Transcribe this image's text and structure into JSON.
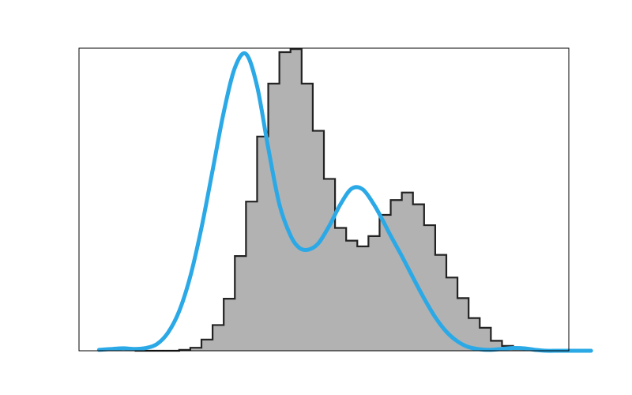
{
  "chart_data": {
    "type": "histogram",
    "title": "",
    "xlabel": "",
    "ylabel": "",
    "axes_ticks_visible": false,
    "grid": false,
    "legend": "none",
    "xlim": [
      0.0,
      44.0
    ],
    "ylim": [
      0,
      100
    ],
    "bins": {
      "edges": [
        5,
        6,
        7,
        8,
        9,
        10,
        11,
        12,
        13,
        14,
        15,
        16,
        17,
        18,
        19,
        20,
        21,
        22,
        23,
        24,
        25,
        26,
        27,
        28,
        29,
        30,
        31,
        32,
        33,
        34,
        35,
        36,
        37,
        38,
        39,
        40,
        41,
        42
      ],
      "counts": [
        0,
        0,
        0,
        0,
        0.3,
        1,
        3.7,
        8.5,
        17.2,
        31.3,
        49.3,
        70.8,
        88.3,
        98.7,
        99.7,
        88.3,
        72.7,
        56.8,
        40.6,
        36.4,
        34.5,
        37.9,
        44.9,
        49.8,
        52.3,
        48.4,
        41.5,
        31.7,
        24.2,
        17.4,
        10.8,
        7.6,
        3.3,
        1.6,
        0.5,
        0.2,
        0
      ]
    },
    "kde": {
      "x": [
        1.8,
        3,
        4,
        5,
        6,
        7,
        8,
        9,
        10,
        11,
        12,
        13,
        14,
        15,
        16,
        17,
        18,
        19,
        19.8,
        20.6,
        21.5,
        22.5,
        23.5,
        24.5,
        25.5,
        26.5,
        27.3,
        28,
        29,
        30,
        31,
        32,
        33,
        34,
        35,
        36,
        37,
        38,
        39,
        40,
        41,
        42,
        43,
        44,
        46
      ],
      "y": [
        0.3,
        0.6,
        0.8,
        0.6,
        0.9,
        2.2,
        6.0,
        13.1,
        24.6,
        40.6,
        59.6,
        78.8,
        93.5,
        98.1,
        87.4,
        67.0,
        48.4,
        38.1,
        34.0,
        33.4,
        35.5,
        41.4,
        48.5,
        53.6,
        53.3,
        48.3,
        43.0,
        38.0,
        31.3,
        24.2,
        17.3,
        11.1,
        6.3,
        3.1,
        1.2,
        0.5,
        0.3,
        0.6,
        0.9,
        0.8,
        0.3,
        0.0,
        0.0,
        0.0,
        0.0
      ]
    },
    "colors": {
      "bar_fill": "#b2b2b2",
      "bar_edge": "#222222",
      "kde_line": "#2ba9e6",
      "frame": "#000000"
    }
  }
}
